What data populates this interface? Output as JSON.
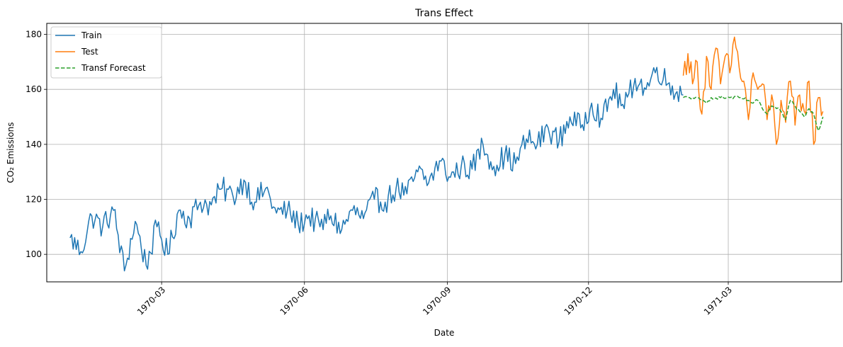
{
  "chart_data": {
    "type": "line",
    "title": "Trans Effect",
    "xlabel": "Date",
    "ylabel": "CO₂ Emissions",
    "x_axis_type": "date",
    "xlim": [
      "1969-12-17",
      "1971-05-13"
    ],
    "ylim": [
      90,
      184
    ],
    "x_ticks": [
      {
        "date": "1970-03-01",
        "label": "1970-03"
      },
      {
        "date": "1970-06-01",
        "label": "1970-06"
      },
      {
        "date": "1970-09-01",
        "label": "1970-09"
      },
      {
        "date": "1970-12-01",
        "label": "1970-12"
      },
      {
        "date": "1971-03-01",
        "label": "1971-03"
      }
    ],
    "y_ticks": [
      100,
      120,
      140,
      160,
      180
    ],
    "grid": true,
    "legend_position": "top-left",
    "series": [
      {
        "name": "Train",
        "color": "#1f77b4",
        "style": "solid",
        "x_start": "1970-01-01",
        "x_end": "1971-01-31",
        "points": [
          [
            0,
            106
          ],
          [
            7,
            101
          ],
          [
            14,
            114
          ],
          [
            21,
            110
          ],
          [
            28,
            116
          ],
          [
            35,
            94
          ],
          [
            42,
            112
          ],
          [
            49,
            96
          ],
          [
            56,
            110
          ],
          [
            63,
            100
          ],
          [
            70,
            116
          ],
          [
            77,
            113
          ],
          [
            84,
            119
          ],
          [
            91,
            118
          ],
          [
            98,
            124
          ],
          [
            105,
            121
          ],
          [
            112,
            127
          ],
          [
            119,
            119
          ],
          [
            126,
            124
          ],
          [
            133,
            115
          ],
          [
            140,
            116
          ],
          [
            147,
            111
          ],
          [
            154,
            114
          ],
          [
            161,
            110
          ],
          [
            168,
            114
          ],
          [
            175,
            109
          ],
          [
            182,
            116
          ],
          [
            189,
            113
          ],
          [
            196,
            120
          ],
          [
            203,
            119
          ],
          [
            210,
            124
          ],
          [
            217,
            122
          ],
          [
            224,
            130
          ],
          [
            231,
            126
          ],
          [
            238,
            134
          ],
          [
            245,
            128
          ],
          [
            252,
            132
          ],
          [
            259,
            131
          ],
          [
            266,
            140
          ],
          [
            273,
            132
          ],
          [
            280,
            136
          ],
          [
            287,
            133
          ],
          [
            294,
            142
          ],
          [
            301,
            140
          ],
          [
            308,
            146
          ],
          [
            315,
            141
          ],
          [
            322,
            150
          ],
          [
            329,
            146
          ],
          [
            336,
            155
          ],
          [
            343,
            149
          ],
          [
            350,
            160
          ],
          [
            357,
            153
          ],
          [
            364,
            164
          ],
          [
            371,
            160
          ],
          [
            378,
            168
          ],
          [
            385,
            162
          ],
          [
            395,
            158
          ]
        ]
      },
      {
        "name": "Test",
        "color": "#ff7f0e",
        "style": "solid",
        "x_start": "1971-01-31",
        "x_end": "1971-05-01",
        "points": [
          [
            0,
            165
          ],
          [
            3,
            173
          ],
          [
            6,
            162
          ],
          [
            9,
            170
          ],
          [
            12,
            151
          ],
          [
            15,
            172
          ],
          [
            18,
            160
          ],
          [
            21,
            175
          ],
          [
            24,
            162
          ],
          [
            27,
            172
          ],
          [
            30,
            166
          ],
          [
            33,
            179
          ],
          [
            36,
            168
          ],
          [
            39,
            163
          ],
          [
            42,
            149
          ],
          [
            45,
            166
          ],
          [
            48,
            160
          ],
          [
            51,
            162
          ],
          [
            54,
            149
          ],
          [
            57,
            158
          ],
          [
            60,
            140
          ],
          [
            63,
            156
          ],
          [
            66,
            148
          ],
          [
            69,
            163
          ],
          [
            72,
            147
          ],
          [
            75,
            158
          ],
          [
            78,
            152
          ],
          [
            81,
            163
          ],
          [
            84,
            140
          ],
          [
            87,
            157
          ],
          [
            90,
            152
          ]
        ]
      },
      {
        "name": "Transf Forecast",
        "color": "#2ca02c",
        "style": "dashed",
        "x_start": "1971-01-31",
        "x_end": "1971-05-01",
        "points": [
          [
            0,
            157
          ],
          [
            6,
            157
          ],
          [
            12,
            156
          ],
          [
            15,
            155
          ],
          [
            18,
            157
          ],
          [
            24,
            157
          ],
          [
            30,
            157
          ],
          [
            36,
            157
          ],
          [
            42,
            156
          ],
          [
            45,
            155
          ],
          [
            48,
            156
          ],
          [
            51,
            153
          ],
          [
            54,
            151
          ],
          [
            57,
            154
          ],
          [
            60,
            153
          ],
          [
            63,
            152
          ],
          [
            66,
            149
          ],
          [
            69,
            156
          ],
          [
            72,
            154
          ],
          [
            75,
            152
          ],
          [
            78,
            150
          ],
          [
            81,
            153
          ],
          [
            84,
            151
          ],
          [
            87,
            145
          ],
          [
            90,
            150
          ]
        ]
      }
    ]
  }
}
